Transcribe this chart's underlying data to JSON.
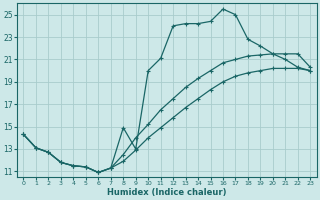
{
  "xlabel": "Humidex (Indice chaleur)",
  "bg_color": "#cde8e8",
  "grid_color": "#a8cccc",
  "line_color": "#1a6666",
  "xlim": [
    -0.5,
    23.5
  ],
  "ylim": [
    10.5,
    26.0
  ],
  "yticks": [
    11,
    13,
    15,
    17,
    19,
    21,
    23,
    25
  ],
  "xticks": [
    0,
    1,
    2,
    3,
    4,
    5,
    6,
    7,
    8,
    9,
    10,
    11,
    12,
    13,
    14,
    15,
    16,
    17,
    18,
    19,
    20,
    21,
    22,
    23
  ],
  "line1_x": [
    0,
    1,
    2,
    3,
    4,
    5,
    6,
    7,
    8,
    9,
    10,
    11,
    12,
    13,
    14,
    15,
    16,
    17,
    18,
    19,
    20,
    21,
    22,
    23
  ],
  "line1_y": [
    14.3,
    13.1,
    12.7,
    11.8,
    11.5,
    11.4,
    10.9,
    11.3,
    11.9,
    12.9,
    14.0,
    14.9,
    15.8,
    16.7,
    17.5,
    18.3,
    19.0,
    19.5,
    19.8,
    20.0,
    20.2,
    20.2,
    20.2,
    20.0
  ],
  "line2_x": [
    0,
    1,
    2,
    3,
    4,
    5,
    6,
    7,
    8,
    9,
    10,
    11,
    12,
    13,
    14,
    15,
    16,
    17,
    18,
    19,
    20,
    21,
    22,
    23
  ],
  "line2_y": [
    14.3,
    13.1,
    12.7,
    11.8,
    11.5,
    11.4,
    10.9,
    11.3,
    12.5,
    14.0,
    15.2,
    16.5,
    17.5,
    18.5,
    19.3,
    20.0,
    20.7,
    21.0,
    21.3,
    21.4,
    21.5,
    21.5,
    21.5,
    20.3
  ],
  "line3_x": [
    0,
    1,
    2,
    3,
    4,
    5,
    6,
    7,
    8,
    9,
    10,
    11,
    12,
    13,
    14,
    15,
    16,
    17,
    18,
    19,
    20,
    21,
    22,
    23
  ],
  "line3_y": [
    14.3,
    13.1,
    12.7,
    11.8,
    11.5,
    11.4,
    10.9,
    11.3,
    14.9,
    13.0,
    20.0,
    21.1,
    24.0,
    24.2,
    24.2,
    24.4,
    25.5,
    25.0,
    22.8,
    22.2,
    21.5,
    21.0,
    20.3,
    20.0
  ]
}
